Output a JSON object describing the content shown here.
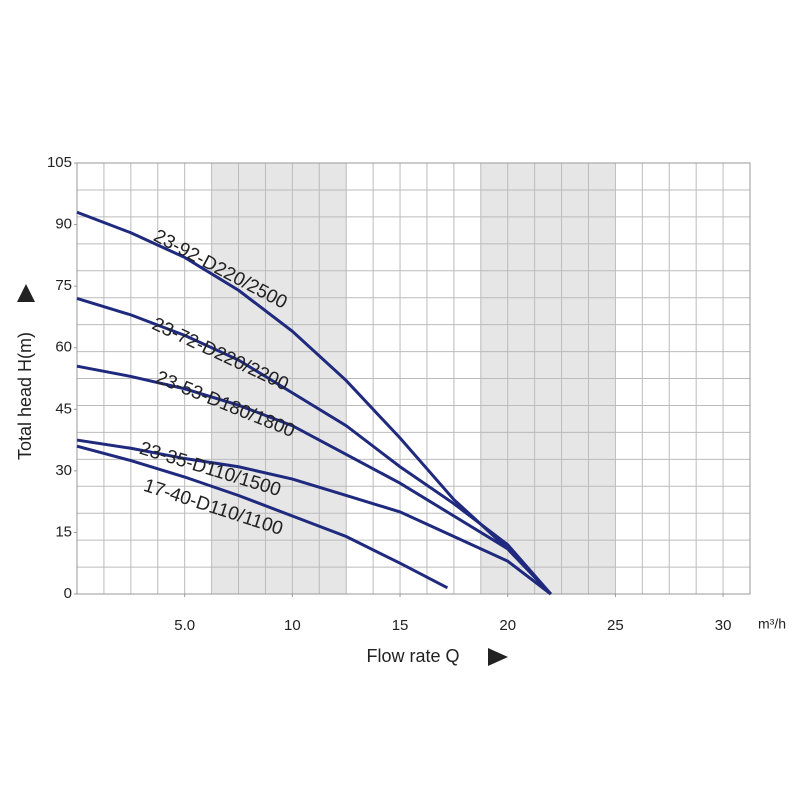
{
  "chart_data": {
    "type": "line",
    "xlabel": "Flow rate Q",
    "ylabel": "Total head H(m)",
    "x_unit_label": "m³/h",
    "xlim": [
      0,
      31.25
    ],
    "ylim": [
      0,
      105
    ],
    "xticks": [
      {
        "value": 5,
        "label": "5.0"
      },
      10,
      15,
      20,
      25,
      30
    ],
    "yticks": [
      0,
      15,
      30,
      45,
      60,
      75,
      90,
      105
    ],
    "grid": true,
    "grid_divisions": {
      "x": 25,
      "y": 16
    },
    "shaded_x": [
      [
        6.25,
        12.5
      ],
      [
        18.75,
        25
      ]
    ],
    "shade_color": "#e6e6e6",
    "series": [
      {
        "name": "23-92-D220/2500",
        "color": "#1f2a7e",
        "x": [
          0,
          2.5,
          5,
          7.5,
          10,
          12.5,
          15,
          17.5,
          20,
          22
        ],
        "values": [
          93,
          88,
          82,
          74,
          64,
          52,
          38,
          23,
          11,
          0
        ]
      },
      {
        "name": "23-72-D220/2200",
        "color": "#1f2a7e",
        "x": [
          0,
          2.5,
          5,
          7.5,
          10,
          12.5,
          15,
          17.5,
          20,
          22
        ],
        "values": [
          72,
          68,
          63,
          57,
          49,
          41,
          31,
          22,
          12,
          0
        ]
      },
      {
        "name": "23-53-D180/1800",
        "color": "#1f2a7e",
        "x": [
          0,
          2.5,
          5,
          7.5,
          10,
          12.5,
          15,
          17.5,
          20,
          22
        ],
        "values": [
          55.5,
          53,
          50,
          46,
          41,
          34,
          27,
          19,
          11,
          0
        ]
      },
      {
        "name": "23-35-D110/1500",
        "color": "#1f2a7e",
        "x": [
          0,
          2.5,
          5,
          7.5,
          10,
          12.5,
          15,
          17.5,
          20,
          22
        ],
        "values": [
          37.5,
          35.5,
          33,
          31,
          28,
          24,
          20,
          14,
          8,
          0
        ]
      },
      {
        "name": "17-40-D110/1100",
        "color": "#1f2a7e",
        "x": [
          0,
          2.5,
          5,
          7.5,
          10,
          12.5,
          15,
          17.2
        ],
        "values": [
          36,
          32.5,
          28.5,
          24,
          19,
          14,
          7.5,
          1.5
        ]
      }
    ]
  }
}
